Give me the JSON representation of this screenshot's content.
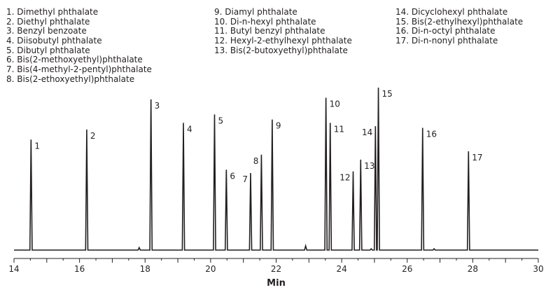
{
  "chart_data": {
    "type": "line",
    "title": "",
    "xlabel": "Min",
    "ylabel": "",
    "xlim": [
      14,
      30
    ],
    "ylim": [
      0,
      100
    ],
    "grid": false,
    "x_ticks": [
      14,
      16,
      18,
      20,
      22,
      24,
      26,
      28,
      30
    ],
    "legend": [
      [
        "1. Dimethyl phthalate",
        "2. Diethyl phthalate",
        "3. Benzyl benzoate",
        "4. Diisobutyl phthalate",
        "5. Dibutyl phthalate",
        "6. Bis(2-methoxyethyl)phthalate",
        "7. Bis(4-methyl-2-pentyl)phthalate",
        "8. Bis(2-ethoxyethyl)phthalate"
      ],
      [
        "9. Diamyl phthalate",
        "10. Di-n-hexyl phthalate",
        "11. Butyl benzyl phthalate",
        "12. Hexyl-2-ethylhexyl phthalate",
        "13. Bis(2-butoxyethyl)phthalate"
      ],
      [
        "14. Dicyclohexyl phthalate",
        "15. Bis(2-ethylhexyl)phthalate",
        "16. Di-n-octyl phthalate",
        "17. Di-n-nonyl phthalate"
      ]
    ],
    "peaks": [
      {
        "label": "1",
        "x": 14.52,
        "y": 66
      },
      {
        "label": "2",
        "x": 16.22,
        "y": 72
      },
      {
        "label": "3",
        "x": 18.18,
        "y": 90
      },
      {
        "label": "4",
        "x": 19.17,
        "y": 76
      },
      {
        "label": "5",
        "x": 20.12,
        "y": 81
      },
      {
        "label": "6",
        "x": 20.48,
        "y": 48
      },
      {
        "label": "7",
        "x": 21.22,
        "y": 46
      },
      {
        "label": "8",
        "x": 21.55,
        "y": 57
      },
      {
        "label": "9",
        "x": 21.88,
        "y": 78
      },
      {
        "label": "10",
        "x": 23.52,
        "y": 91
      },
      {
        "label": "11",
        "x": 23.65,
        "y": 76
      },
      {
        "label": "12",
        "x": 24.35,
        "y": 47
      },
      {
        "label": "13",
        "x": 24.58,
        "y": 54
      },
      {
        "label": "14",
        "x": 25.03,
        "y": 74
      },
      {
        "label": "15",
        "x": 25.12,
        "y": 97
      },
      {
        "label": "16",
        "x": 26.47,
        "y": 73
      },
      {
        "label": "17",
        "x": 27.87,
        "y": 59
      }
    ],
    "minor_peaks": [
      {
        "x": 17.82,
        "y": 1.5
      },
      {
        "x": 22.9,
        "y": 2.5
      },
      {
        "x": 24.9,
        "y": 0.8
      },
      {
        "x": 26.82,
        "y": 0.8
      }
    ]
  }
}
